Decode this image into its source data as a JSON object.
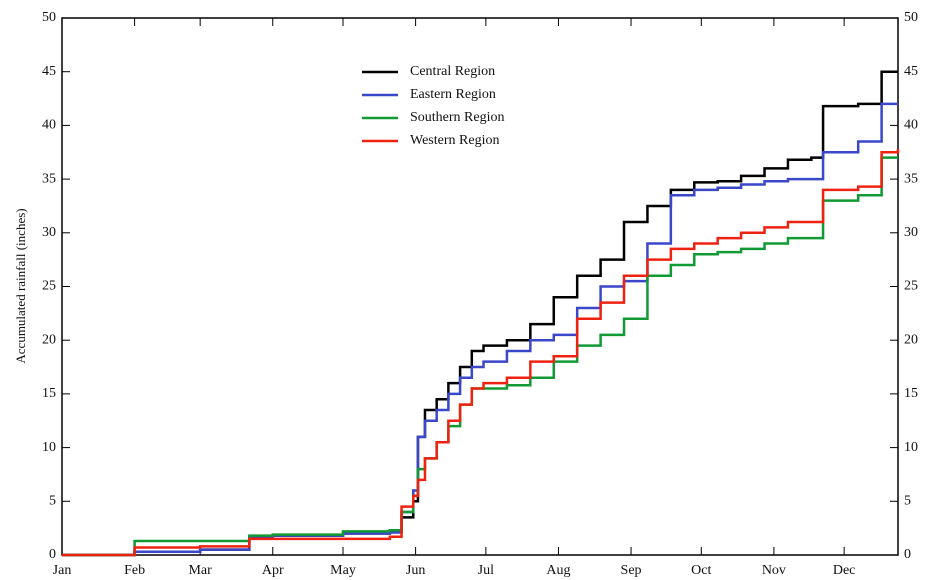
{
  "chart_data": {
    "type": "line",
    "step": true,
    "y_label": "Accumulated rainfall (inches)",
    "x": [
      0,
      10,
      31,
      59,
      80,
      90,
      120,
      140,
      145,
      150,
      152,
      155,
      160,
      165,
      170,
      175,
      180,
      190,
      200,
      210,
      220,
      230,
      240,
      250,
      260,
      270,
      280,
      290,
      300,
      310,
      320,
      325,
      340,
      350,
      357
    ],
    "xlim": [
      0,
      357
    ],
    "xticks": [
      {
        "value": 0,
        "label": "Jan"
      },
      {
        "value": 31,
        "label": "Feb"
      },
      {
        "value": 59,
        "label": "Mar"
      },
      {
        "value": 90,
        "label": "Apr"
      },
      {
        "value": 120,
        "label": "May"
      },
      {
        "value": 151,
        "label": "Jun"
      },
      {
        "value": 181,
        "label": "Jul"
      },
      {
        "value": 212,
        "label": "Aug"
      },
      {
        "value": 243,
        "label": "Sep"
      },
      {
        "value": 273,
        "label": "Oct"
      },
      {
        "value": 304,
        "label": "Nov"
      },
      {
        "value": 334,
        "label": "Dec"
      }
    ],
    "ylim": [
      0,
      50
    ],
    "yticks": [
      0,
      5,
      10,
      15,
      20,
      25,
      30,
      35,
      40,
      45,
      50
    ],
    "y2lim": [
      0,
      50
    ],
    "y2ticks": [
      0,
      5,
      10,
      15,
      20,
      25,
      30,
      35,
      40,
      45,
      50
    ],
    "legend": "upper-center",
    "grid": false,
    "series": [
      {
        "name": "Central Region",
        "color": "#000000",
        "values": [
          0,
          0,
          0.3,
          0.5,
          1.7,
          1.8,
          2,
          2.2,
          3.5,
          5,
          11,
          13.5,
          14.5,
          16,
          17.5,
          19,
          19.5,
          20,
          21.5,
          24,
          26,
          27.5,
          31,
          32.5,
          34,
          34.7,
          34.8,
          35.3,
          36,
          36.8,
          37,
          41.8,
          42,
          45,
          45
        ]
      },
      {
        "name": "Eastern Region",
        "color": "#3a47c8",
        "values": [
          0,
          0,
          0.3,
          0.5,
          1.7,
          1.8,
          2,
          2.1,
          4,
          6,
          11,
          12.5,
          13.5,
          15,
          16.5,
          17.5,
          18,
          19,
          20,
          20.5,
          23,
          25,
          25.5,
          29,
          33.5,
          34,
          34.2,
          34.5,
          34.8,
          35,
          35,
          37.5,
          38.5,
          42,
          42
        ]
      },
      {
        "name": "Southern Region",
        "color": "#119933",
        "values": [
          0,
          0,
          1.3,
          1.3,
          1.8,
          1.9,
          2.2,
          2.3,
          4,
          5.5,
          8,
          9,
          10.5,
          12,
          14,
          15.5,
          15.5,
          15.8,
          16.5,
          18,
          19.5,
          20.5,
          22,
          26,
          27,
          28,
          28.2,
          28.5,
          29,
          29.5,
          29.5,
          33,
          33.5,
          37,
          37
        ]
      },
      {
        "name": "Western Region",
        "color": "#ee2211",
        "values": [
          0,
          0,
          0.7,
          0.8,
          1.5,
          1.5,
          1.5,
          1.7,
          4.5,
          5.5,
          7,
          9,
          10.5,
          12.5,
          14,
          15.5,
          16,
          16.5,
          18,
          18.5,
          22,
          23.5,
          26,
          27.5,
          28.5,
          29,
          29.5,
          30,
          30.5,
          31,
          31,
          34,
          34.3,
          37.5,
          37.8
        ]
      }
    ]
  }
}
